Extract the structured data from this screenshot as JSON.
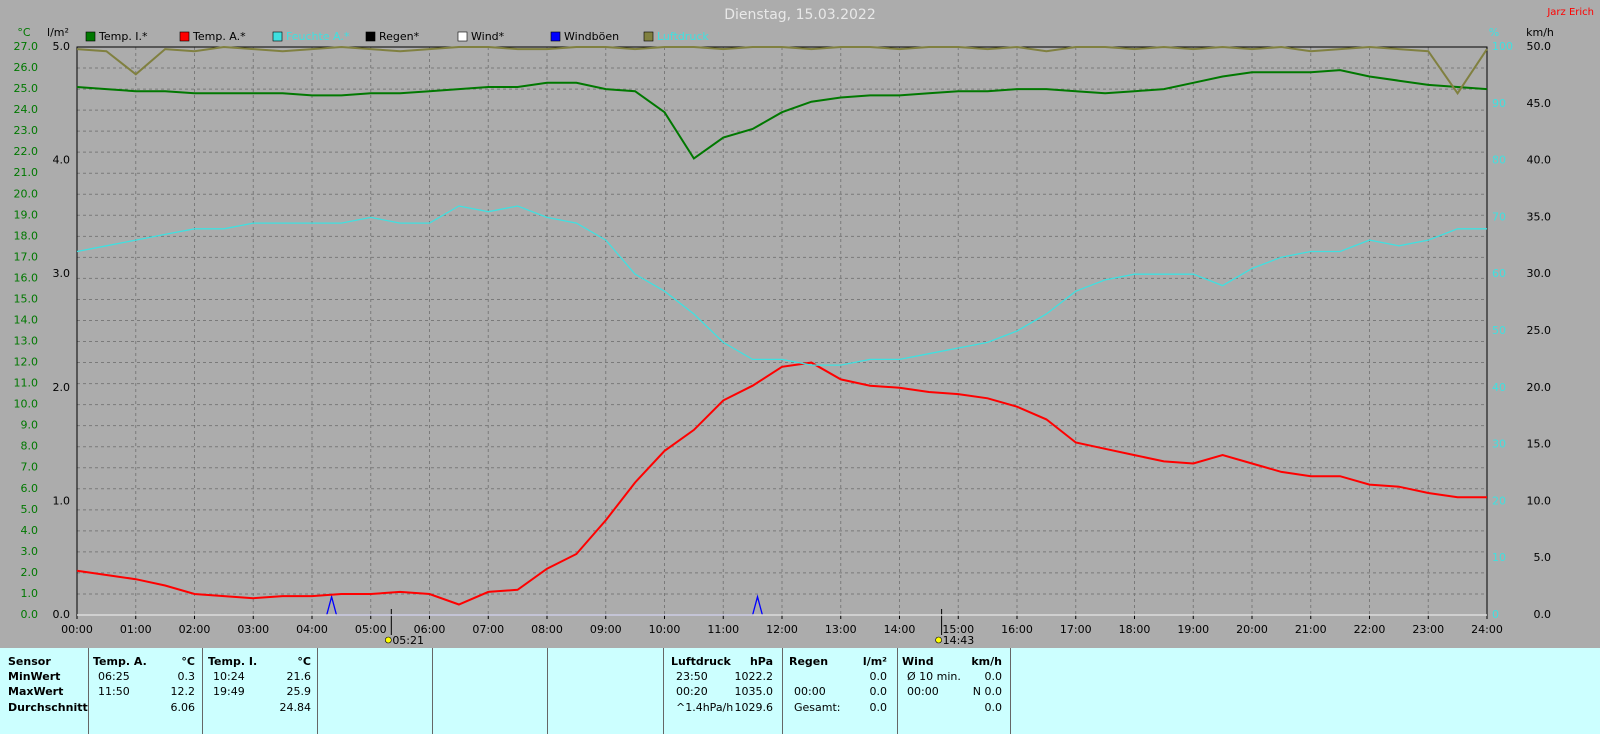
{
  "chart_data": {
    "type": "line",
    "title": "Dienstag, 15.03.2022",
    "author": "Jarz Erich",
    "units": {
      "y": "°C",
      "y4": "l/m²",
      "y3": "%",
      "y2": "km/h"
    },
    "x": [
      "00:00",
      "00:30",
      "01:00",
      "01:30",
      "02:00",
      "02:30",
      "03:00",
      "03:30",
      "04:00",
      "04:30",
      "05:00",
      "05:30",
      "06:00",
      "06:30",
      "07:00",
      "07:30",
      "08:00",
      "08:30",
      "09:00",
      "09:30",
      "10:00",
      "10:30",
      "11:00",
      "11:30",
      "12:00",
      "12:30",
      "13:00",
      "13:30",
      "14:00",
      "14:30",
      "15:00",
      "15:30",
      "16:00",
      "16:30",
      "17:00",
      "17:30",
      "18:00",
      "18:30",
      "19:00",
      "19:30",
      "20:00",
      "20:30",
      "21:00",
      "21:30",
      "22:00",
      "22:30",
      "23:00",
      "23:30",
      "24:00"
    ],
    "xticks": [
      "00:00",
      "01:00",
      "02:00",
      "03:00",
      "04:00",
      "05:00",
      "06:00",
      "07:00",
      "08:00",
      "09:00",
      "10:00",
      "11:00",
      "12:00",
      "13:00",
      "14:00",
      "15:00",
      "16:00",
      "17:00",
      "18:00",
      "19:00",
      "20:00",
      "21:00",
      "22:00",
      "23:00",
      "24:00"
    ],
    "xlim": [
      "00:00",
      "24:00"
    ],
    "ylim": [
      0,
      27
    ],
    "yticks": [
      {
        "value": 0,
        "label": "0.0"
      },
      {
        "value": 1,
        "label": "1.0"
      },
      {
        "value": 2,
        "label": "2.0"
      },
      {
        "value": 3,
        "label": "3.0"
      },
      {
        "value": 4,
        "label": "4.0"
      },
      {
        "value": 5,
        "label": "5.0"
      },
      {
        "value": 6,
        "label": "6.0"
      },
      {
        "value": 7,
        "label": "7.0"
      },
      {
        "value": 8,
        "label": "8.0"
      },
      {
        "value": 9,
        "label": "9.0"
      },
      {
        "value": 10,
        "label": "10.0"
      },
      {
        "value": 11,
        "label": "11.0"
      },
      {
        "value": 12,
        "label": "12.0"
      },
      {
        "value": 13,
        "label": "13.0"
      },
      {
        "value": 14,
        "label": "14.0"
      },
      {
        "value": 15,
        "label": "15.0"
      },
      {
        "value": 16,
        "label": "16.0"
      },
      {
        "value": 17,
        "label": "17.0"
      },
      {
        "value": 18,
        "label": "18.0"
      },
      {
        "value": 19,
        "label": "19.0"
      },
      {
        "value": 20,
        "label": "20.0"
      },
      {
        "value": 21,
        "label": "21.0"
      },
      {
        "value": 22,
        "label": "22.0"
      },
      {
        "value": 23,
        "label": "23.0"
      },
      {
        "value": 24,
        "label": "24.0"
      },
      {
        "value": 25,
        "label": "25.0"
      },
      {
        "value": 26,
        "label": "26.0"
      },
      {
        "value": 27,
        "label": "27.0"
      }
    ],
    "y4lim": [
      0,
      5
    ],
    "y4ticks": [
      {
        "value": 0,
        "label": "0.0"
      },
      {
        "value": 1,
        "label": "1.0"
      },
      {
        "value": 2,
        "label": "2.0"
      },
      {
        "value": 3,
        "label": "3.0"
      },
      {
        "value": 4,
        "label": "4.0"
      },
      {
        "value": 5,
        "label": "5.0"
      }
    ],
    "y3lim": [
      0,
      100
    ],
    "y3ticks": [
      0,
      10,
      20,
      30,
      40,
      50,
      60,
      70,
      80,
      90,
      100
    ],
    "y2lim": [
      0,
      50
    ],
    "y2ticks": [
      {
        "value": 0,
        "label": "0.0"
      },
      {
        "value": 5,
        "label": "5.0"
      },
      {
        "value": 10,
        "label": "10.0"
      },
      {
        "value": 15,
        "label": "15.0"
      },
      {
        "value": 20,
        "label": "20.0"
      },
      {
        "value": 25,
        "label": "25.0"
      },
      {
        "value": 30,
        "label": "30.0"
      },
      {
        "value": 35,
        "label": "35.0"
      },
      {
        "value": 40,
        "label": "40.0"
      },
      {
        "value": 45,
        "label": "45.0"
      },
      {
        "value": 50,
        "label": "50.0"
      }
    ],
    "grid": true,
    "series": [
      {
        "name": "Temp. I.*",
        "color": "#007800",
        "values": [
          25.1,
          25.0,
          24.9,
          24.9,
          24.8,
          24.8,
          24.8,
          24.8,
          24.7,
          24.7,
          24.8,
          24.8,
          24.9,
          25.0,
          25.1,
          25.1,
          25.3,
          25.3,
          25.0,
          24.9,
          23.9,
          21.7,
          22.7,
          23.1,
          23.9,
          24.4,
          24.6,
          24.7,
          24.7,
          24.8,
          24.9,
          24.9,
          25.0,
          25.0,
          24.9,
          24.8,
          24.9,
          25.0,
          25.3,
          25.6,
          25.8,
          25.8,
          25.8,
          25.9,
          25.6,
          25.4,
          25.2,
          25.1,
          25.0
        ]
      },
      {
        "name": "Temp. A.*",
        "color": "#ff0000",
        "values": [
          2.1,
          1.9,
          1.7,
          1.4,
          1.0,
          0.9,
          0.8,
          0.9,
          0.9,
          1.0,
          1.0,
          1.1,
          1.0,
          0.5,
          1.1,
          1.2,
          2.2,
          2.9,
          4.5,
          6.3,
          7.8,
          8.8,
          10.2,
          10.9,
          11.8,
          12.0,
          11.2,
          10.9,
          10.8,
          10.6,
          10.5,
          10.3,
          9.9,
          9.3,
          8.2,
          7.9,
          7.6,
          7.3,
          7.2,
          7.6,
          7.2,
          6.8,
          6.6,
          6.6,
          6.2,
          6.1,
          5.8,
          5.6,
          5.6
        ]
      },
      {
        "name": "Feuchte A.*",
        "color": "#40e0e0",
        "label_color": "#40e0e0",
        "axis": "y3",
        "values": [
          64,
          65,
          66,
          67,
          68,
          68,
          69,
          69,
          69,
          69,
          70,
          69,
          69,
          72,
          71,
          72,
          70,
          69,
          66,
          60,
          57,
          53,
          48,
          45,
          45,
          44,
          44,
          45,
          45,
          46,
          47,
          48,
          50,
          53,
          57,
          59,
          60,
          60,
          60,
          58,
          61,
          63,
          64,
          64,
          66,
          65,
          66,
          68,
          68
        ]
      },
      {
        "name": "Regen*",
        "color": "#000000",
        "axis": "y4",
        "x": [
          "00:00",
          "24:00"
        ],
        "values": [
          0,
          0
        ]
      },
      {
        "name": "Wind*",
        "color": "#ffffff",
        "axis": "y2",
        "x": [
          "00:00",
          "24:00"
        ],
        "values": [
          0,
          0
        ]
      },
      {
        "name": "Windböen",
        "color": "#0000ff",
        "axis": "y2",
        "x": [
          "04:15",
          "04:20",
          "04:25",
          "11:30",
          "11:35",
          "11:40"
        ],
        "values": [
          0,
          1.6,
          0,
          0,
          1.6,
          0
        ]
      },
      {
        "name": "Luftdruck",
        "color": "#808040",
        "label_color": "#40e0e0",
        "values": [
          26.9,
          26.8,
          25.7,
          26.9,
          26.8,
          27.0,
          26.9,
          26.8,
          26.9,
          27.0,
          26.9,
          26.8,
          26.9,
          27.0,
          27.0,
          26.9,
          26.9,
          27.0,
          27.0,
          26.9,
          27.0,
          27.0,
          26.9,
          27.0,
          27.0,
          26.9,
          27.0,
          27.0,
          26.9,
          27.0,
          27.0,
          26.9,
          27.0,
          26.8,
          27.0,
          27.0,
          26.9,
          27.0,
          26.9,
          27.0,
          26.9,
          27.0,
          26.8,
          26.9,
          27.0,
          26.9,
          26.8,
          24.8,
          26.9
        ]
      }
    ],
    "annotations": [
      {
        "label": "05:21"
      },
      {
        "label": "14:43"
      }
    ]
  },
  "stats": {
    "sensor": {
      "header": "Sensor",
      "rows": [
        "MinWert",
        "MaxWert",
        "Durchschnitt"
      ]
    },
    "columns": [
      {
        "header": "Temp. A.",
        "unit": "°C",
        "rows": [
          {
            "time": "06:25",
            "value": "0.3"
          },
          {
            "time": "11:50",
            "value": "12.2"
          },
          {
            "value": "6.06"
          }
        ]
      },
      {
        "header": "Temp. I.",
        "unit": "°C",
        "rows": [
          {
            "time": "10:24",
            "value": "21.6"
          },
          {
            "time": "19:49",
            "value": "25.9"
          },
          {
            "value": "24.84"
          }
        ]
      },
      {
        "header": "Luftdruck",
        "unit": "hPa",
        "rows": [
          {
            "time": "23:50",
            "value": "1022.2"
          },
          {
            "time": "00:20",
            "value": "1035.0"
          },
          {
            "time": "^1.4hPa/h",
            "value": "1029.6"
          }
        ]
      },
      {
        "header": "Regen",
        "unit": "l/m²",
        "rows": [
          {
            "value": "0.0"
          },
          {
            "time": "00:00",
            "value": "0.0"
          },
          {
            "time": "Gesamt:",
            "value": "0.0"
          }
        ]
      },
      {
        "header": "Wind",
        "unit": "km/h",
        "rows": [
          {
            "time": "Ø 10 min.",
            "value": "0.0"
          },
          {
            "time": "00:00",
            "value": "N 0.0"
          },
          {
            "value": "0.0"
          }
        ]
      }
    ]
  }
}
